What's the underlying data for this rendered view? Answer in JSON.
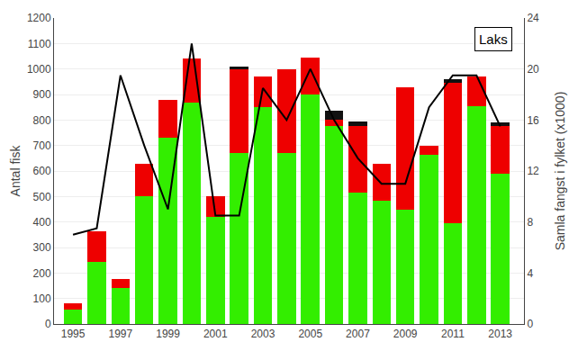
{
  "chart_data": {
    "type": "bar",
    "title": "Laks",
    "x": [
      1995,
      1996,
      1997,
      1998,
      1999,
      2000,
      2001,
      2002,
      2003,
      2004,
      2005,
      2006,
      2007,
      2008,
      2009,
      2010,
      2011,
      2012,
      2013
    ],
    "series": [
      {
        "type": "bar",
        "color": "#33ee00",
        "values": [
          55,
          245,
          140,
          500,
          730,
          870,
          420,
          670,
          850,
          670,
          900,
          775,
          515,
          485,
          450,
          665,
          395,
          855,
          590
        ]
      },
      {
        "type": "bar",
        "color": "#ee0000",
        "values": [
          25,
          120,
          35,
          130,
          150,
          170,
          80,
          330,
          120,
          330,
          145,
          25,
          260,
          145,
          480,
          35,
          550,
          115,
          185
        ]
      },
      {
        "type": "bar",
        "color": "#111111",
        "values": [
          0,
          0,
          0,
          0,
          0,
          0,
          0,
          10,
          0,
          0,
          0,
          35,
          20,
          0,
          0,
          0,
          15,
          0,
          15
        ]
      },
      {
        "type": "line",
        "color": "#000000",
        "axis": "y2",
        "values": [
          7.0,
          7.5,
          19.5,
          14.0,
          9.0,
          22.0,
          8.5,
          8.5,
          18.5,
          16.0,
          20.0,
          16.0,
          13.0,
          11.0,
          11.0,
          17.0,
          19.5,
          19.5,
          15.5
        ]
      }
    ],
    "stacked": true,
    "xlim": [
      1994.2,
      2014.0
    ],
    "xticks": [
      1995,
      1997,
      1999,
      2001,
      2003,
      2005,
      2007,
      2009,
      2011,
      2013
    ],
    "ylim": [
      0,
      1200
    ],
    "yticks": [
      0,
      100,
      200,
      300,
      400,
      500,
      600,
      700,
      800,
      900,
      1000,
      1100,
      1200
    ],
    "y2lim": [
      0,
      24
    ],
    "y2ticks": [
      0,
      4,
      8,
      12,
      16,
      20,
      24
    ],
    "ylabel": "Antal fisk",
    "y2label": "Samla fangst i fylket (x1000)",
    "grid": true
  }
}
